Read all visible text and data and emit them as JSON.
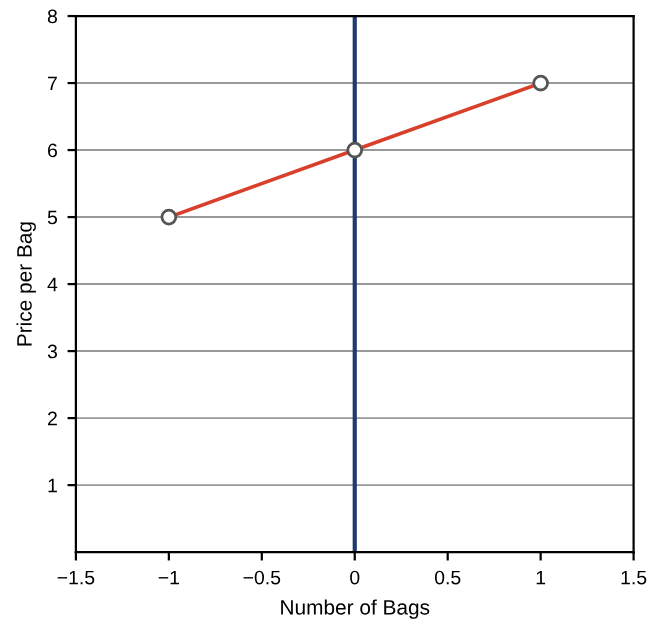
{
  "chart_data": {
    "type": "line",
    "xlabel": "Number of Bags",
    "ylabel": "Price per Bag",
    "x": [
      -1,
      0,
      1
    ],
    "series": [
      {
        "color": "#d9402b",
        "values": [
          5,
          6,
          7
        ]
      }
    ],
    "marker": "circle",
    "line_style": "solid",
    "xlim": [
      -1.5,
      1.5
    ],
    "ylim": [
      0,
      8
    ],
    "xticks": [
      {
        "value": -1.5,
        "label": "−1.5"
      },
      {
        "value": -1,
        "label": "−1"
      },
      {
        "value": -0.5,
        "label": "−0.5"
      },
      0,
      0.5,
      1,
      1.5
    ],
    "yticks": [
      1,
      2,
      3,
      4,
      5,
      6,
      7,
      8
    ],
    "grid": "y",
    "ref_lines": [
      {
        "axis": "x",
        "value": 0,
        "color": "#1f3a6e"
      }
    ]
  }
}
